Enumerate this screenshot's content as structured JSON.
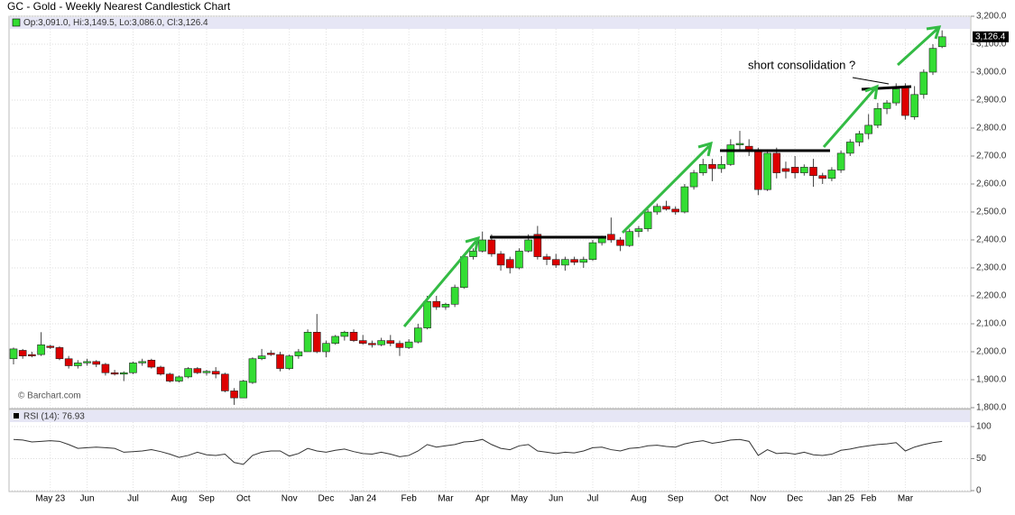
{
  "chart_data": {
    "type": "candlestick",
    "title": "GC - Gold - Weekly Nearest Candlestick Chart",
    "legend_text": "Op:3,091.0, Hi:3,149.5, Lo:3,086.0, Cl:3,126.4",
    "last_label": "3,126.4",
    "source": "© Barchart.com",
    "annotation": "short consolidation ?",
    "up_color": "#33dd33",
    "down_color": "#dd0000",
    "categories": [
      null,
      null,
      null,
      null,
      "May 23",
      null,
      null,
      null,
      "Jun",
      null,
      null,
      null,
      null,
      "Jul",
      null,
      null,
      null,
      null,
      "Aug",
      null,
      null,
      "Sep",
      null,
      null,
      null,
      "Oct",
      null,
      null,
      null,
      null,
      "Nov",
      null,
      null,
      null,
      "Dec",
      null,
      null,
      null,
      "Jan 24",
      null,
      null,
      null,
      null,
      "Feb",
      null,
      null,
      null,
      "Mar",
      null,
      null,
      null,
      "Apr",
      null,
      null,
      null,
      "May",
      null,
      null,
      null,
      "Jun",
      null,
      null,
      null,
      "Jul",
      null,
      null,
      null,
      null,
      "Aug",
      null,
      null,
      null,
      "Sep",
      null,
      null,
      null,
      null,
      "Oct",
      null,
      null,
      null,
      "Nov",
      null,
      null,
      null,
      "Dec",
      null,
      null,
      null,
      null,
      "Jan 25",
      null,
      null,
      "Feb",
      null,
      null,
      null,
      "Mar",
      null,
      null,
      null,
      null
    ],
    "open": [
      1975,
      2005,
      1990,
      1990,
      2020,
      2015,
      1975,
      1950,
      1960,
      1965,
      1955,
      1925,
      1920,
      1925,
      1960,
      1970,
      1945,
      1920,
      1895,
      1910,
      1940,
      1925,
      1930,
      1920,
      1860,
      1835,
      1890,
      1975,
      1995,
      1990,
      1940,
      1985,
      2000,
      2070,
      2000,
      2030,
      2055,
      2070,
      2040,
      2030,
      2025,
      2040,
      2030,
      2015,
      2035,
      2085,
      2180,
      2160,
      2170,
      2230,
      2340,
      2360,
      2400,
      2350,
      2330,
      2300,
      2360,
      2420,
      2340,
      2330,
      2310,
      2330,
      2320,
      2330,
      2390,
      2420,
      2400,
      2380,
      2430,
      2440,
      2500,
      2520,
      2510,
      2500,
      2590,
      2640,
      2670,
      2655,
      2670,
      2740,
      2735,
      2720,
      2580,
      2710,
      2655,
      2660,
      2640,
      2660,
      2630,
      2620,
      2650,
      2710,
      2750,
      2780,
      2810,
      2870,
      2890,
      2945,
      2840,
      2920,
      3000,
      3091
    ],
    "high": [
      2015,
      2010,
      2000,
      2070,
      2025,
      2020,
      1985,
      1970,
      1975,
      1970,
      1960,
      1935,
      1930,
      1965,
      1975,
      1975,
      1950,
      1925,
      1915,
      1945,
      1945,
      1935,
      1945,
      1925,
      1870,
      1900,
      1980,
      2010,
      2005,
      2000,
      1990,
      2010,
      2080,
      2135,
      2040,
      2060,
      2075,
      2080,
      2060,
      2040,
      2050,
      2060,
      2040,
      2045,
      2100,
      2200,
      2200,
      2175,
      2240,
      2350,
      2370,
      2430,
      2420,
      2360,
      2340,
      2370,
      2420,
      2450,
      2350,
      2350,
      2340,
      2340,
      2340,
      2400,
      2415,
      2480,
      2410,
      2440,
      2450,
      2510,
      2530,
      2540,
      2520,
      2600,
      2650,
      2690,
      2690,
      2700,
      2760,
      2790,
      2760,
      2730,
      2720,
      2730,
      2680,
      2700,
      2670,
      2690,
      2640,
      2660,
      2720,
      2760,
      2790,
      2850,
      2890,
      2900,
      2960,
      2960,
      2950,
      3010,
      3100,
      3149.5
    ],
    "low": [
      1955,
      1975,
      1980,
      1985,
      2010,
      1970,
      1940,
      1940,
      1950,
      1945,
      1915,
      1915,
      1895,
      1920,
      1950,
      1940,
      1915,
      1890,
      1890,
      1905,
      1920,
      1915,
      1905,
      1855,
      1810,
      1835,
      1885,
      1970,
      1985,
      1930,
      1935,
      1975,
      2000,
      1995,
      1980,
      2025,
      2040,
      2035,
      2025,
      2015,
      2020,
      2020,
      1985,
      2010,
      2030,
      2080,
      2150,
      2150,
      2160,
      2225,
      2330,
      2355,
      2340,
      2290,
      2280,
      2295,
      2355,
      2330,
      2310,
      2300,
      2290,
      2310,
      2300,
      2325,
      2380,
      2390,
      2360,
      2375,
      2410,
      2430,
      2490,
      2505,
      2490,
      2495,
      2580,
      2630,
      2610,
      2640,
      2665,
      2720,
      2700,
      2560,
      2575,
      2620,
      2620,
      2620,
      2630,
      2590,
      2600,
      2610,
      2640,
      2700,
      2735,
      2760,
      2800,
      2850,
      2880,
      2830,
      2830,
      2905,
      2990,
      3086
    ],
    "close": [
      2010,
      1985,
      1985,
      2025,
      2015,
      1975,
      1950,
      1960,
      1965,
      1955,
      1925,
      1920,
      1925,
      1960,
      1965,
      1945,
      1920,
      1895,
      1910,
      1940,
      1925,
      1930,
      1920,
      1860,
      1835,
      1895,
      1975,
      1985,
      1990,
      1940,
      1985,
      2000,
      2070,
      2000,
      2030,
      2055,
      2070,
      2040,
      2030,
      2025,
      2040,
      2030,
      2015,
      2035,
      2085,
      2180,
      2160,
      2170,
      2230,
      2340,
      2360,
      2400,
      2350,
      2310,
      2300,
      2360,
      2400,
      2340,
      2330,
      2310,
      2330,
      2320,
      2330,
      2390,
      2410,
      2400,
      2380,
      2430,
      2440,
      2500,
      2520,
      2510,
      2500,
      2590,
      2640,
      2670,
      2655,
      2670,
      2740,
      2745,
      2720,
      2580,
      2710,
      2640,
      2645,
      2640,
      2660,
      2630,
      2620,
      2650,
      2710,
      2750,
      2780,
      2810,
      2870,
      2890,
      2940,
      2845,
      2920,
      3000,
      3085,
      3126.4
    ],
    "ylim": [
      1800,
      3200
    ],
    "yticks": [
      {
        "value": 1800,
        "label": "1,800.0"
      },
      {
        "value": 1900,
        "label": "1,900.0"
      },
      {
        "value": 2000,
        "label": "2,000.0"
      },
      {
        "value": 2100,
        "label": "2,100.0"
      },
      {
        "value": 2200,
        "label": "2,200.0"
      },
      {
        "value": 2300,
        "label": "2,300.0"
      },
      {
        "value": 2400,
        "label": "2,400.0"
      },
      {
        "value": 2500,
        "label": "2,500.0"
      },
      {
        "value": 2600,
        "label": "2,600.0"
      },
      {
        "value": 2700,
        "label": "2,700.0"
      },
      {
        "value": 2800,
        "label": "2,800.0"
      },
      {
        "value": 2900,
        "label": "2,900.0"
      },
      {
        "value": 3000,
        "label": "3,000.0"
      },
      {
        "value": 3100,
        "label": "3,100.0"
      },
      {
        "value": 3200,
        "label": "3,200.0"
      }
    ],
    "grid": true,
    "indicator": {
      "type": "line",
      "label": "RSI (14): 76.93",
      "color": "#333333",
      "values": [
        80,
        79,
        76,
        77,
        78,
        77,
        72,
        66,
        67,
        68,
        67,
        66,
        60,
        61,
        62,
        64,
        61,
        57,
        52,
        55,
        60,
        56,
        55,
        57,
        44,
        41,
        55,
        60,
        62,
        62,
        54,
        58,
        66,
        62,
        60,
        63,
        65,
        61,
        58,
        57,
        60,
        57,
        53,
        55,
        62,
        72,
        68,
        70,
        72,
        76,
        77,
        80,
        72,
        66,
        64,
        70,
        72,
        62,
        60,
        58,
        60,
        59,
        62,
        67,
        68,
        64,
        62,
        66,
        67,
        70,
        71,
        69,
        68,
        73,
        76,
        78,
        74,
        76,
        79,
        80,
        77,
        55,
        64,
        58,
        59,
        57,
        60,
        56,
        55,
        57,
        63,
        65,
        68,
        70,
        72,
        73,
        75,
        62,
        68,
        72,
        75,
        76.93
      ],
      "ylim": [
        0,
        100
      ],
      "yticks": [
        0,
        50,
        100
      ]
    }
  }
}
